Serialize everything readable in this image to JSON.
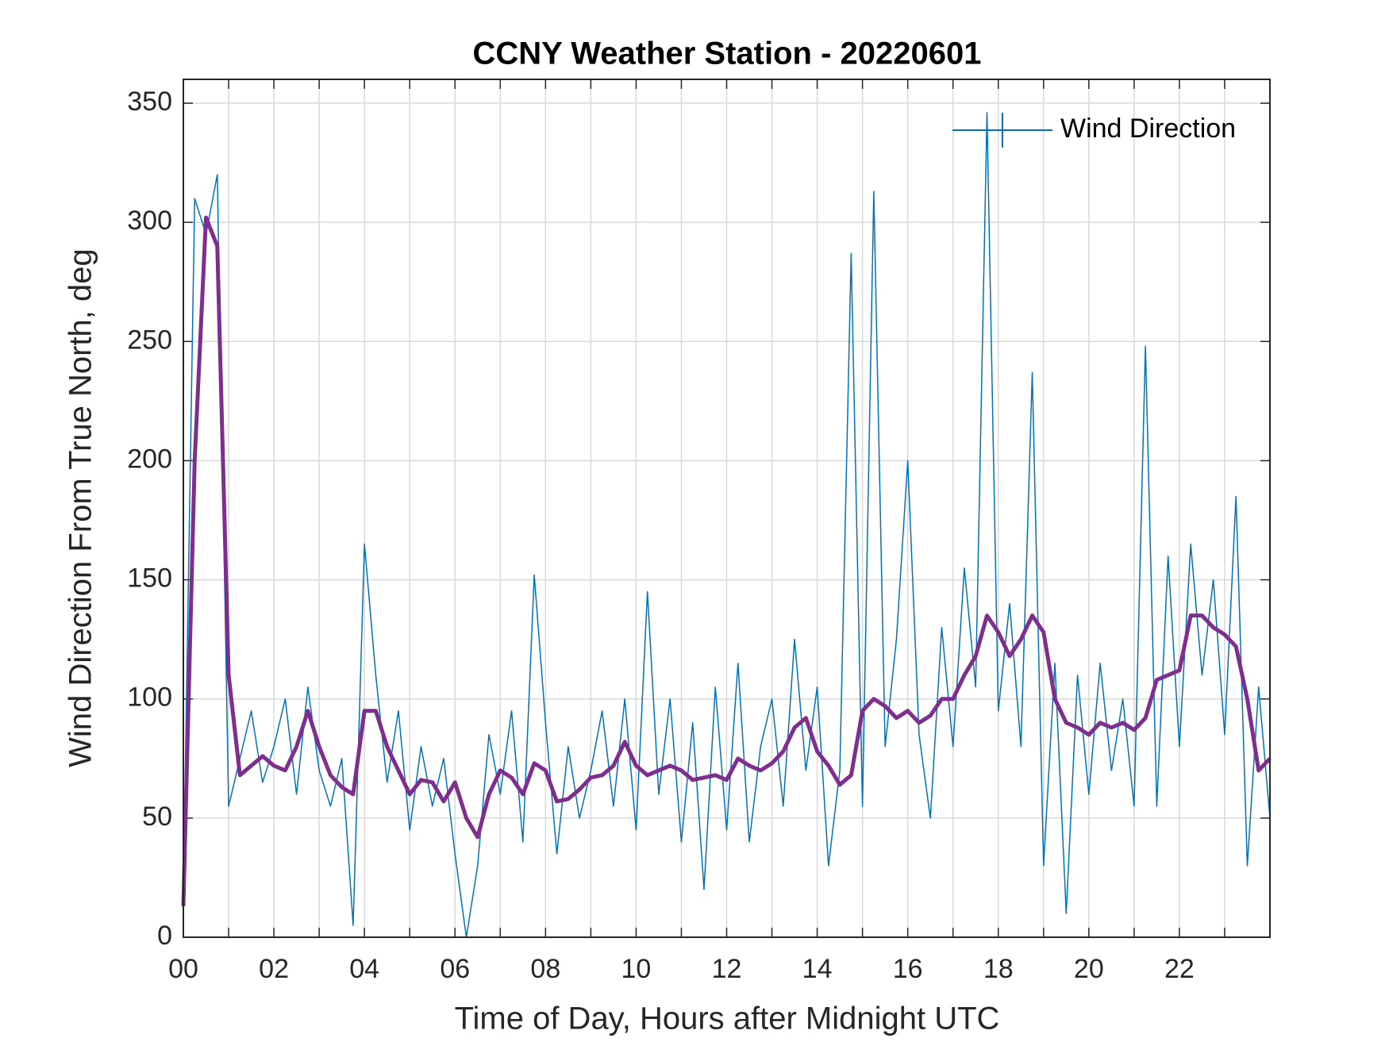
{
  "chart_data": {
    "type": "line",
    "title": "CCNY Weather Station - 20220601",
    "xlabel": "Time of Day, Hours after Midnight UTC",
    "ylabel": "Wind Direction From True North, deg",
    "xlim": [
      0,
      24
    ],
    "ylim": [
      0,
      360
    ],
    "xticks": [
      {
        "value": 0,
        "label": "00"
      },
      {
        "value": 1,
        "label": null
      },
      {
        "value": 2,
        "label": "02"
      },
      {
        "value": 3,
        "label": null
      },
      {
        "value": 4,
        "label": "04"
      },
      {
        "value": 5,
        "label": null
      },
      {
        "value": 6,
        "label": "06"
      },
      {
        "value": 7,
        "label": null
      },
      {
        "value": 8,
        "label": "08"
      },
      {
        "value": 9,
        "label": null
      },
      {
        "value": 10,
        "label": "10"
      },
      {
        "value": 11,
        "label": null
      },
      {
        "value": 12,
        "label": "12"
      },
      {
        "value": 13,
        "label": null
      },
      {
        "value": 14,
        "label": "14"
      },
      {
        "value": 15,
        "label": null
      },
      {
        "value": 16,
        "label": "16"
      },
      {
        "value": 17,
        "label": null
      },
      {
        "value": 18,
        "label": "18"
      },
      {
        "value": 19,
        "label": null
      },
      {
        "value": 20,
        "label": "20"
      },
      {
        "value": 21,
        "label": null
      },
      {
        "value": 22,
        "label": "22"
      },
      {
        "value": 23,
        "label": null
      }
    ],
    "yticks": [
      0,
      50,
      100,
      150,
      200,
      250,
      300,
      350
    ],
    "grid": true,
    "legend": "upper right",
    "x": [
      0,
      0.25,
      0.5,
      0.75,
      1,
      1.25,
      1.5,
      1.75,
      2,
      2.25,
      2.5,
      2.75,
      3,
      3.25,
      3.5,
      3.75,
      4,
      4.25,
      4.5,
      4.75,
      5,
      5.25,
      5.5,
      5.75,
      6,
      6.25,
      6.5,
      6.75,
      7,
      7.25,
      7.5,
      7.75,
      8,
      8.25,
      8.5,
      8.75,
      9,
      9.25,
      9.5,
      9.75,
      10,
      10.25,
      10.5,
      10.75,
      11,
      11.25,
      11.5,
      11.75,
      12,
      12.25,
      12.5,
      12.75,
      13,
      13.25,
      13.5,
      13.75,
      14,
      14.25,
      14.5,
      14.75,
      15,
      15.25,
      15.5,
      15.75,
      16,
      16.25,
      16.5,
      16.75,
      17,
      17.25,
      17.5,
      17.75,
      18,
      18.25,
      18.5,
      18.75,
      19,
      19.25,
      19.5,
      19.75,
      20,
      20.25,
      20.5,
      20.75,
      21,
      21.25,
      21.5,
      21.75,
      22,
      22.25,
      22.5,
      22.75,
      23,
      23.25,
      23.5,
      23.75,
      24
    ],
    "series": [
      {
        "name": "Wind Direction",
        "color": "#0072bd",
        "width": 1.5,
        "values": [
          20,
          310,
          295,
          320,
          55,
          75,
          95,
          65,
          80,
          100,
          60,
          105,
          70,
          55,
          75,
          5,
          165,
          110,
          65,
          95,
          45,
          80,
          55,
          75,
          35,
          0,
          30,
          85,
          60,
          95,
          40,
          152,
          90,
          35,
          80,
          50,
          70,
          95,
          55,
          100,
          45,
          145,
          60,
          100,
          40,
          90,
          20,
          105,
          45,
          115,
          40,
          80,
          100,
          55,
          125,
          70,
          105,
          30,
          70,
          287,
          55,
          313,
          80,
          125,
          200,
          85,
          50,
          130,
          80,
          155,
          105,
          346,
          95,
          140,
          80,
          237,
          30,
          115,
          10,
          110,
          60,
          115,
          70,
          100,
          55,
          248,
          55,
          160,
          80,
          165,
          110,
          150,
          85,
          185,
          30,
          105,
          50
        ]
      },
      {
        "color": "#7e2f8e",
        "width": 5,
        "values": [
          13,
          200,
          302,
          290,
          110,
          68,
          72,
          76,
          72,
          70,
          80,
          95,
          80,
          68,
          63,
          60,
          95,
          95,
          80,
          70,
          60,
          66,
          65,
          57,
          65,
          50,
          42,
          60,
          70,
          67,
          60,
          73,
          70,
          57,
          58,
          62,
          67,
          68,
          72,
          82,
          72,
          68,
          70,
          72,
          70,
          66,
          67,
          68,
          66,
          75,
          72,
          70,
          73,
          78,
          88,
          92,
          78,
          72,
          64,
          68,
          95,
          100,
          97,
          92,
          95,
          90,
          93,
          100,
          100,
          110,
          118,
          135,
          128,
          118,
          125,
          135,
          128,
          100,
          90,
          88,
          85,
          90,
          88,
          90,
          87,
          92,
          108,
          110,
          112,
          135,
          135,
          130,
          127,
          122,
          100,
          70,
          75
        ]
      }
    ]
  }
}
